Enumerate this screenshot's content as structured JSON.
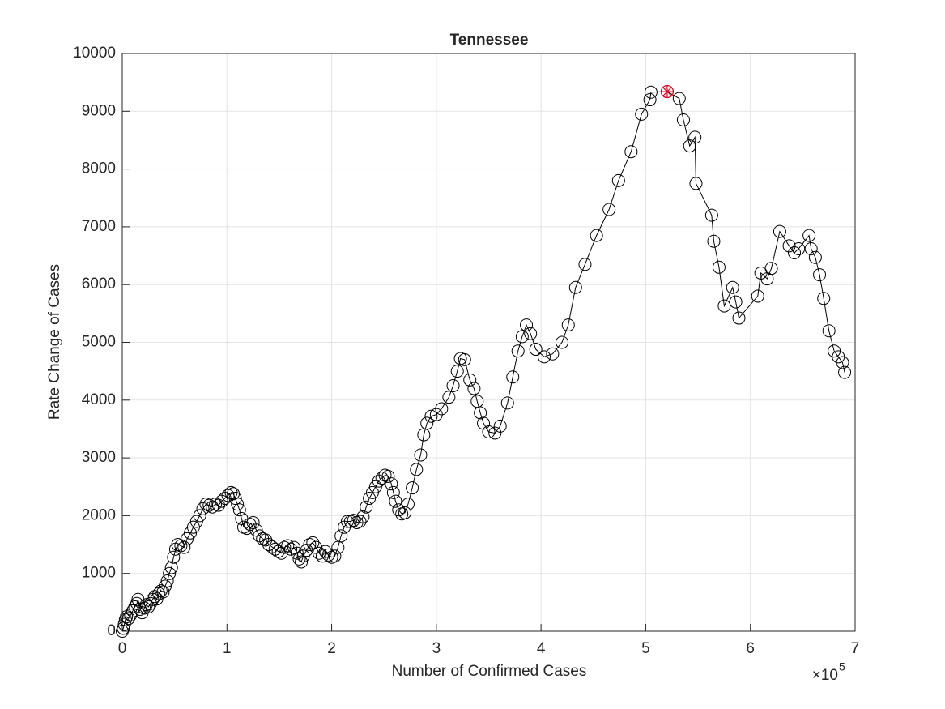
{
  "chart_data": {
    "type": "line",
    "title": "Tennessee",
    "x_label": "Number of Confirmed Cases",
    "y_label": "Rate Change of Cases",
    "x_multiplier": "×10",
    "x_exponent": "5",
    "xlim": [
      0,
      700000
    ],
    "xticks": [
      0,
      {
        "value": 100000,
        "label": "1"
      },
      {
        "value": 200000,
        "label": "2"
      },
      {
        "value": 300000,
        "label": "3"
      },
      {
        "value": 400000,
        "label": "4"
      },
      {
        "value": 500000,
        "label": "5"
      },
      {
        "value": 600000,
        "label": "6"
      },
      {
        "value": 700000,
        "label": "7"
      }
    ],
    "ylim": [
      0,
      10000
    ],
    "yticks": [
      0,
      1000,
      2000,
      3000,
      4000,
      5000,
      6000,
      7000,
      8000,
      9000,
      10000
    ],
    "grid": true,
    "marker": "circle",
    "series": [
      {
        "color": "#000000",
        "x": [
          0,
          1000,
          2000,
          3000,
          4000,
          6000,
          8000,
          10000,
          12000,
          14000,
          15000,
          17000,
          19000,
          21000,
          23000,
          25000,
          27000,
          29000,
          31000,
          33000,
          35000,
          37000,
          39000,
          41000,
          43000,
          45000,
          47000,
          49000,
          51000,
          53000,
          56000,
          59000,
          62000,
          65000,
          68000,
          71000,
          74000,
          77000,
          80000,
          83000,
          86000,
          89000,
          92000,
          95000,
          98000,
          101000,
          104000,
          106000,
          108000,
          110000,
          112000,
          114000,
          116000,
          119000,
          122000,
          125000,
          128000,
          131000,
          134000,
          137000,
          140000,
          143000,
          146000,
          149000,
          152000,
          155000,
          158000,
          161000,
          164000,
          167000,
          169000,
          171000,
          173000,
          176000,
          179000,
          182000,
          185000,
          188000,
          191000,
          194000,
          197000,
          200000,
          203000,
          206000,
          209000,
          212000,
          215000,
          218000,
          221000,
          224000,
          227000,
          230000,
          233000,
          236000,
          239000,
          242000,
          245000,
          248000,
          251000,
          254000,
          257000,
          259000,
          261000,
          264000,
          267000,
          270000,
          273000,
          277000,
          281000,
          285000,
          288000,
          291000,
          295000,
          300000,
          305000,
          312000,
          316000,
          320000,
          323000,
          327000,
          332000,
          336000,
          339000,
          342000,
          345000,
          350000,
          356000,
          361000,
          368000,
          373000,
          378000,
          382000,
          386000,
          390000,
          395000,
          403000,
          411000,
          420000,
          426000,
          433000,
          442000,
          453000,
          465000,
          474000,
          486000,
          496000,
          504000,
          505000,
          520500,
          532000,
          536000,
          542000,
          547000,
          548000,
          563000,
          565000,
          570000,
          575000,
          583000,
          586000,
          589000,
          607000,
          610000,
          616000,
          620000,
          628000,
          637000,
          642000,
          646000,
          656000,
          658000,
          662000,
          666000,
          670000,
          675000,
          680000,
          684000,
          688000,
          690000
        ],
        "values": [
          0,
          50,
          120,
          200,
          250,
          220,
          280,
          350,
          420,
          480,
          550,
          380,
          320,
          400,
          460,
          420,
          480,
          550,
          600,
          560,
          650,
          700,
          680,
          780,
          870,
          1000,
          1100,
          1280,
          1420,
          1500,
          1480,
          1450,
          1600,
          1700,
          1800,
          1900,
          2000,
          2120,
          2200,
          2180,
          2150,
          2200,
          2180,
          2250,
          2300,
          2350,
          2400,
          2380,
          2300,
          2200,
          2100,
          1950,
          1800,
          1780,
          1850,
          1880,
          1750,
          1650,
          1600,
          1580,
          1500,
          1460,
          1420,
          1380,
          1350,
          1450,
          1480,
          1420,
          1450,
          1350,
          1250,
          1200,
          1300,
          1400,
          1500,
          1530,
          1450,
          1350,
          1300,
          1380,
          1320,
          1280,
          1300,
          1450,
          1650,
          1800,
          1900,
          1900,
          1920,
          1880,
          1900,
          1980,
          2150,
          2300,
          2400,
          2500,
          2600,
          2650,
          2700,
          2680,
          2550,
          2400,
          2250,
          2100,
          2030,
          2050,
          2200,
          2480,
          2800,
          3050,
          3400,
          3600,
          3720,
          3750,
          3850,
          4050,
          4250,
          4500,
          4720,
          4700,
          4350,
          4200,
          3980,
          3780,
          3600,
          3450,
          3430,
          3550,
          3950,
          4400,
          4850,
          5100,
          5300,
          5150,
          4880,
          4750,
          4800,
          5000,
          5300,
          5950,
          6350,
          6850,
          7300,
          7800,
          8300,
          8950,
          9200,
          9330,
          9340,
          9220,
          8850,
          8400,
          8550,
          7750,
          7200,
          6750,
          6300,
          5630,
          5950,
          5700,
          5420,
          5800,
          6200,
          6100,
          6280,
          6920,
          6670,
          6550,
          6620,
          6850,
          6620,
          6470,
          6170,
          5760,
          5200,
          4850,
          4750,
          4650,
          4480
        ]
      }
    ],
    "highlight_point": {
      "x": 520500,
      "y": 9340,
      "color": "#e8001c"
    }
  }
}
